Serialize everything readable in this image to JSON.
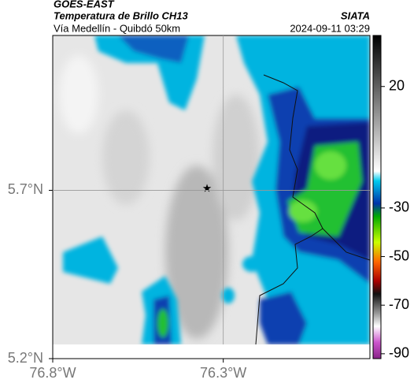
{
  "header": {
    "title": "GOES-EAST",
    "subtitle": "Temperatura de Brillo CH13",
    "source": "SIATA",
    "route": "Vía Medellín - Quibdó 50km",
    "timestamp": "2024-09-11 03:29"
  },
  "map": {
    "xlim": [
      -76.8,
      -75.87
    ],
    "ylim": [
      5.2,
      6.16
    ],
    "xticks": [
      {
        "value": -76.8,
        "label": "76.8°W"
      },
      {
        "value": -76.3,
        "label": "76.3°W"
      }
    ],
    "yticks": [
      {
        "value": 5.2,
        "label": "5.2°N"
      },
      {
        "value": 5.7,
        "label": "5.7°N"
      }
    ],
    "grid": true
  },
  "colorbar": {
    "clim": [
      -92,
      41
    ],
    "ticks": [
      20,
      -30,
      -50,
      -70,
      -90
    ]
  }
}
